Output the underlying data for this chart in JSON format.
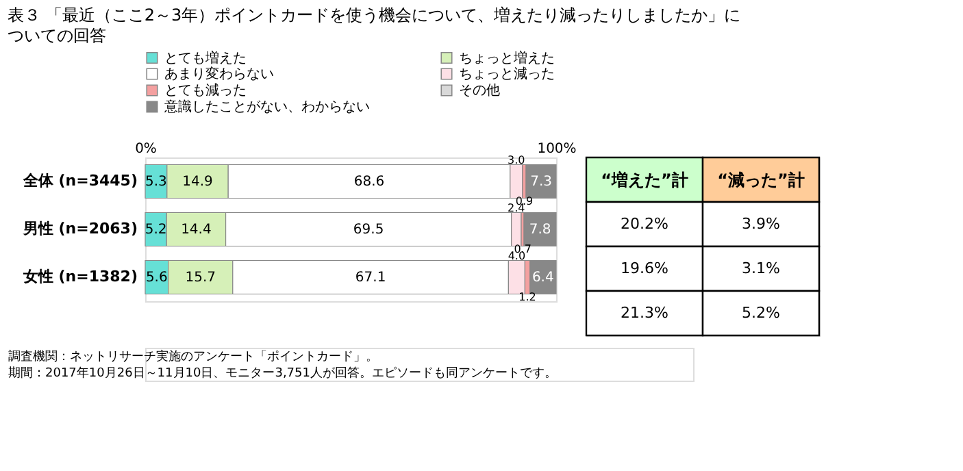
{
  "chart_data": [
    {
      "type": "bar",
      "orientation": "horizontal",
      "stacked": true,
      "title": "表３ 「最近（ここ2～3年）ポイントカードを使う機会について、増えたり減ったりしましたか」についての回答",
      "categories": [
        "全体 (n=3445)",
        "男性 (n=2063)",
        "女性 (n=1382)"
      ],
      "series": [
        {
          "name": "とても増えた",
          "color": "#66e0d6",
          "values": [
            5.3,
            5.2,
            5.6
          ],
          "value_labels": [
            "5.3",
            "5.2",
            "5.6"
          ]
        },
        {
          "name": "ちょっと増えた",
          "color": "#d6f0b8",
          "values": [
            14.9,
            14.4,
            15.7
          ],
          "value_labels": [
            "14.9",
            "14.4",
            "15.7"
          ]
        },
        {
          "name": "あまり変わらない",
          "color": "#ffffff",
          "values": [
            68.6,
            69.5,
            67.1
          ],
          "value_labels": [
            "68.6",
            "69.5",
            "67.1"
          ]
        },
        {
          "name": "ちょっと減った",
          "color": "#fde0e6",
          "values": [
            3.0,
            2.4,
            4.0
          ],
          "value_labels": [
            "3.0",
            "2.4",
            "4.0"
          ]
        },
        {
          "name": "とても減った",
          "color": "#f4a0a0",
          "values": [
            0.9,
            0.7,
            1.2
          ],
          "value_labels": [
            "0.9",
            "0.7",
            "1.2"
          ]
        },
        {
          "name": "その他",
          "color": "#d9d9d9",
          "values": [
            0.0,
            0.0,
            0.0
          ],
          "value_labels": [
            null,
            null,
            null
          ]
        },
        {
          "name": "意識したことがない、わからない",
          "color": "#888888",
          "values": [
            7.3,
            7.8,
            6.4
          ],
          "value_labels": [
            "7.3",
            "7.8",
            "6.4"
          ]
        }
      ],
      "xlim": [
        0,
        100
      ],
      "xticks": [
        {
          "value": 0,
          "label": "0%"
        },
        {
          "value": 100,
          "label": "100%"
        }
      ],
      "legend": "top",
      "annotations": [
        "調査機関：ネットリサーチ実施のアンケート「ポイントカード」。",
        "期間：2017年10月26日～11月10日、モニター3,751人が回答。エピソードも同アンケートです。"
      ]
    },
    {
      "type": "other",
      "colors": [
        "#ccffcc",
        "#ffcc99"
      ],
      "annotations": [
        "“増えた”計",
        "“減った”計",
        "20.2%",
        "3.9%",
        "19.6%",
        "3.1%",
        "21.3%",
        "5.2%"
      ]
    }
  ]
}
